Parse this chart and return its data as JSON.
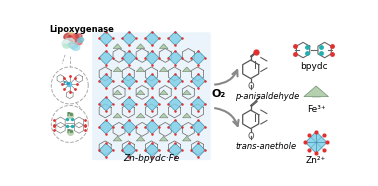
{
  "bg_color": "#ffffff",
  "lipoxygenase_label": "Lipoxygenase",
  "mof_label": "Zn-bpydc·Fe",
  "trans_anethole_label": "trans-anethole",
  "p_anisaldehyde_label": "p-anisaldehyde",
  "o2_label": "O₂",
  "zn_label": "Zn²⁺",
  "fe_label": "Fe³⁺",
  "bpydc_label": "bpydc",
  "arrow_color": "#888888",
  "zn_color": "#7ecfe8",
  "fe_color": "#a8c8a0",
  "red_color": "#e03030",
  "teal_color": "#20b0b0",
  "bond_color": "#555555",
  "mof_bg": "#deeef8"
}
